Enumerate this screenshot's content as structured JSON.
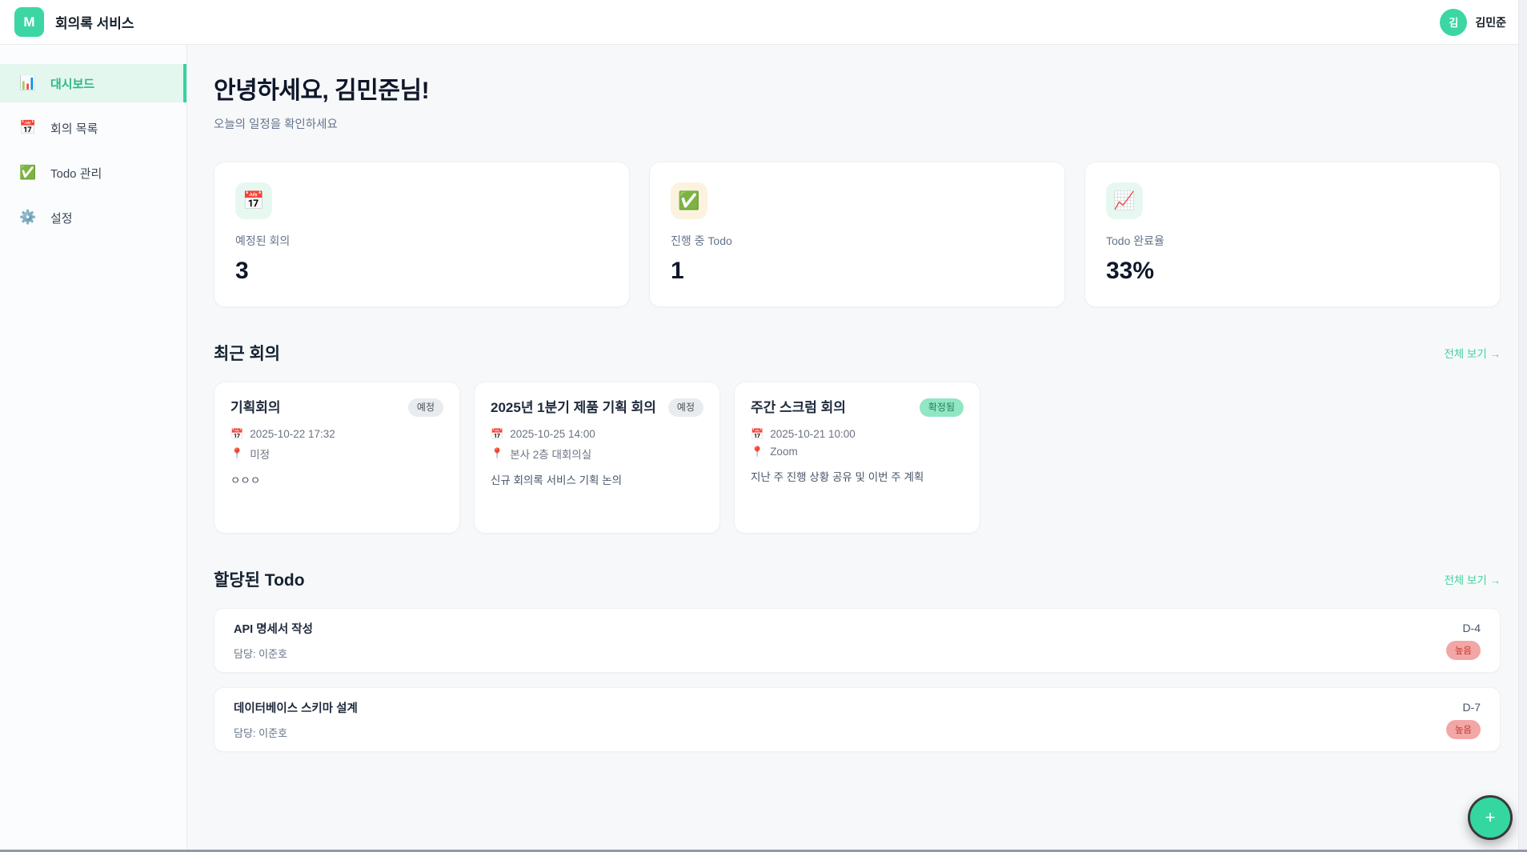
{
  "header": {
    "logo_letter": "M",
    "app_title": "회의록 서비스",
    "user_initial": "김",
    "user_name": "김민준"
  },
  "sidebar": {
    "items": [
      {
        "icon": "📊",
        "label": "대시보드",
        "active": true
      },
      {
        "icon": "📅",
        "label": "회의 목록",
        "active": false
      },
      {
        "icon": "✅",
        "label": "Todo 관리",
        "active": false
      },
      {
        "icon": "⚙️",
        "label": "설정",
        "active": false
      }
    ]
  },
  "greeting": {
    "title": "안녕하세요, 김민준님!",
    "subtitle": "오늘의 일정을 확인하세요"
  },
  "stats": [
    {
      "icon": "📅",
      "label": "예정된 회의",
      "value": "3"
    },
    {
      "icon": "✅",
      "label": "진행 중 Todo",
      "value": "1"
    },
    {
      "icon": "📈",
      "label": "Todo 완료율",
      "value": "33%"
    }
  ],
  "recent_meetings": {
    "title": "최근 회의",
    "view_all": "전체 보기 →",
    "cards": [
      {
        "title": "기획회의",
        "badge": "예정",
        "badge_type": "gray",
        "date": "2025-10-22 17:32",
        "location": "미정",
        "description": "ㅇㅇㅇ"
      },
      {
        "title": "2025년 1분기 제품 기획 회의",
        "badge": "예정",
        "badge_type": "gray",
        "date": "2025-10-25 14:00",
        "location": "본사 2층 대회의실",
        "description": "신규 회의록 서비스 기획 논의"
      },
      {
        "title": "주간 스크럼 회의",
        "badge": "확정됨",
        "badge_type": "green",
        "date": "2025-10-21 10:00",
        "location": "Zoom",
        "description": "지난 주 진행 상황 공유 및 이번 주 계획"
      }
    ],
    "meta_icons": {
      "date": "📅",
      "location": "📍"
    }
  },
  "todos": {
    "title": "할당된 Todo",
    "view_all": "전체 보기 →",
    "items": [
      {
        "title": "API 명세서 작성",
        "assignee": "담당: 이준호",
        "dday": "D-4",
        "priority": "높음"
      },
      {
        "title": "데이터베이스 스키마 설계",
        "assignee": "담당: 이준호",
        "dday": "D-7",
        "priority": "높음"
      }
    ]
  },
  "fab": {
    "label": "+"
  },
  "colors": {
    "accent": "#36d39f",
    "active_item_bg": "#e4f7ee",
    "badge_gray_bg": "#e9ecef",
    "badge_green_bg": "#92e6c3",
    "priority_high_bg": "#f3a6a6",
    "priority_high_text": "#c0392b"
  }
}
